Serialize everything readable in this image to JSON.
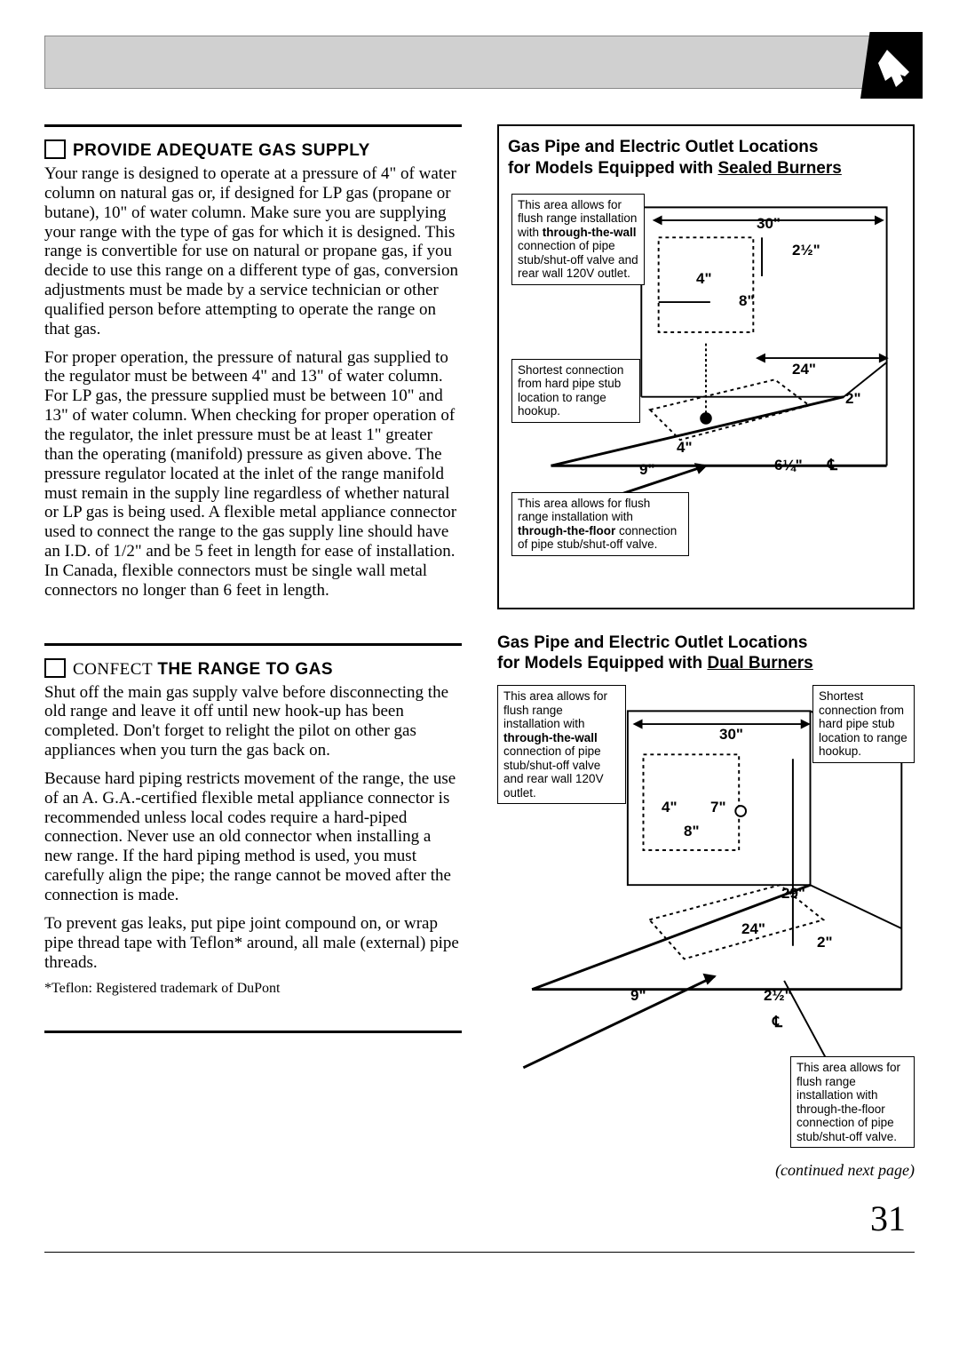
{
  "page": {
    "number": "31",
    "continued": "(continued next page)"
  },
  "left": {
    "section1": {
      "heading": "PROVIDE ADEQUATE GAS SUPPLY",
      "p1": "Your range is designed to operate at a pressure of 4\" of water column on natural gas or, if designed for LP gas (propane or butane), 10\" of water column. Make sure you are supplying your range with the type of gas for which it is designed. This range is convertible for use on natural or propane gas, if you decide to use this range on a different type of gas, conversion adjustments must be made by a service technician or other qualified person before attempting to operate the range on that gas.",
      "p2": "For proper operation, the pressure of natural gas supplied to the regulator must be between 4\" and 13\" of water column. For LP gas, the pressure supplied must be between 10\" and 13\" of water column. When checking for proper operation of the regulator, the inlet pressure must be at least 1\" greater than the operating (manifold) pressure as given above. The pressure regulator located at the inlet of the range manifold must remain in the supply line regardless of whether natural or LP gas is being used. A flexible metal appliance connector used to connect the range to the gas supply line should have an I.D. of 1/2\" and be 5 feet in length for ease of installation. In Canada, flexible connectors must be single wall metal connectors no longer than 6 feet in length."
    },
    "section2": {
      "heading_pre": "CONFECT",
      "heading_bold": "THE RANGE TO GAS",
      "p1": "Shut off the main gas supply valve before disconnecting the old range and leave it off until new hook-up has been completed. Don't forget to relight the pilot on other gas appliances when you turn the gas back on.",
      "p2": "Because hard piping restricts movement of the range, the use of an A. G.A.-certified flexible metal appliance connector is recommended unless local codes require a hard-piped connection. Never use an old connector when installing a new range. If the hard piping method is used, you must carefully align the pipe; the range cannot be moved after the connection is made.",
      "p3": "To prevent gas leaks, put pipe joint compound on, or wrap pipe thread tape with Teflon* around, all male (external) pipe threads.",
      "footnote": "*Teflon: Registered trademark of DuPont"
    }
  },
  "right": {
    "diagram1": {
      "title_line1": "Gas Pipe and Electric Outlet Locations",
      "title_line2_pre": "for Models Equipped with ",
      "title_line2_u": "Sealed Burners",
      "box1": "This area allows for flush range installation with <b>through-the-wall</b> connection of pipe stub/shut-off valve and rear wall 120V outlet.",
      "box2": "Shortest connection from hard pipe stub location to range hookup.",
      "box3": "This area allows for flush range installation with <b>through-the-floor</b> connection of pipe stub/shut-off valve.",
      "dims": {
        "d30": "30\"",
        "d2half": "2½\"",
        "d4a": "4\"",
        "d8": "8\"",
        "d24": "24\"",
        "d2": "2\"",
        "d4b": "4\"",
        "d9": "9\"",
        "d6q": "6¼\"",
        "cl": "℄"
      }
    },
    "diagram2": {
      "title_line1": "Gas Pipe and Electric Outlet Locations",
      "title_line2_pre": "for Models Equipped with ",
      "title_line2_u": "Dual Burners",
      "box1": "This area allows for flush range installation with <b>through-the-wall</b> connection of pipe stub/shut-off valve and rear wall 120V outlet.",
      "box2": "Shortest connection from hard pipe stub location to range hookup.",
      "box3": "This area allows for flush range installation with through-the-floor connection of pipe stub/shut-off valve.",
      "dims": {
        "d30": "30\"",
        "d4": "4\"",
        "d7": "7\"",
        "d8": "8\"",
        "d29": "29\"",
        "d24": "24\"",
        "d2": "2\"",
        "d9": "9\"",
        "d2half": "2½\"",
        "cl": "℄"
      }
    }
  },
  "colors": {
    "text": "#000000",
    "bg": "#ffffff",
    "headerFill": "#d0d0d0"
  }
}
